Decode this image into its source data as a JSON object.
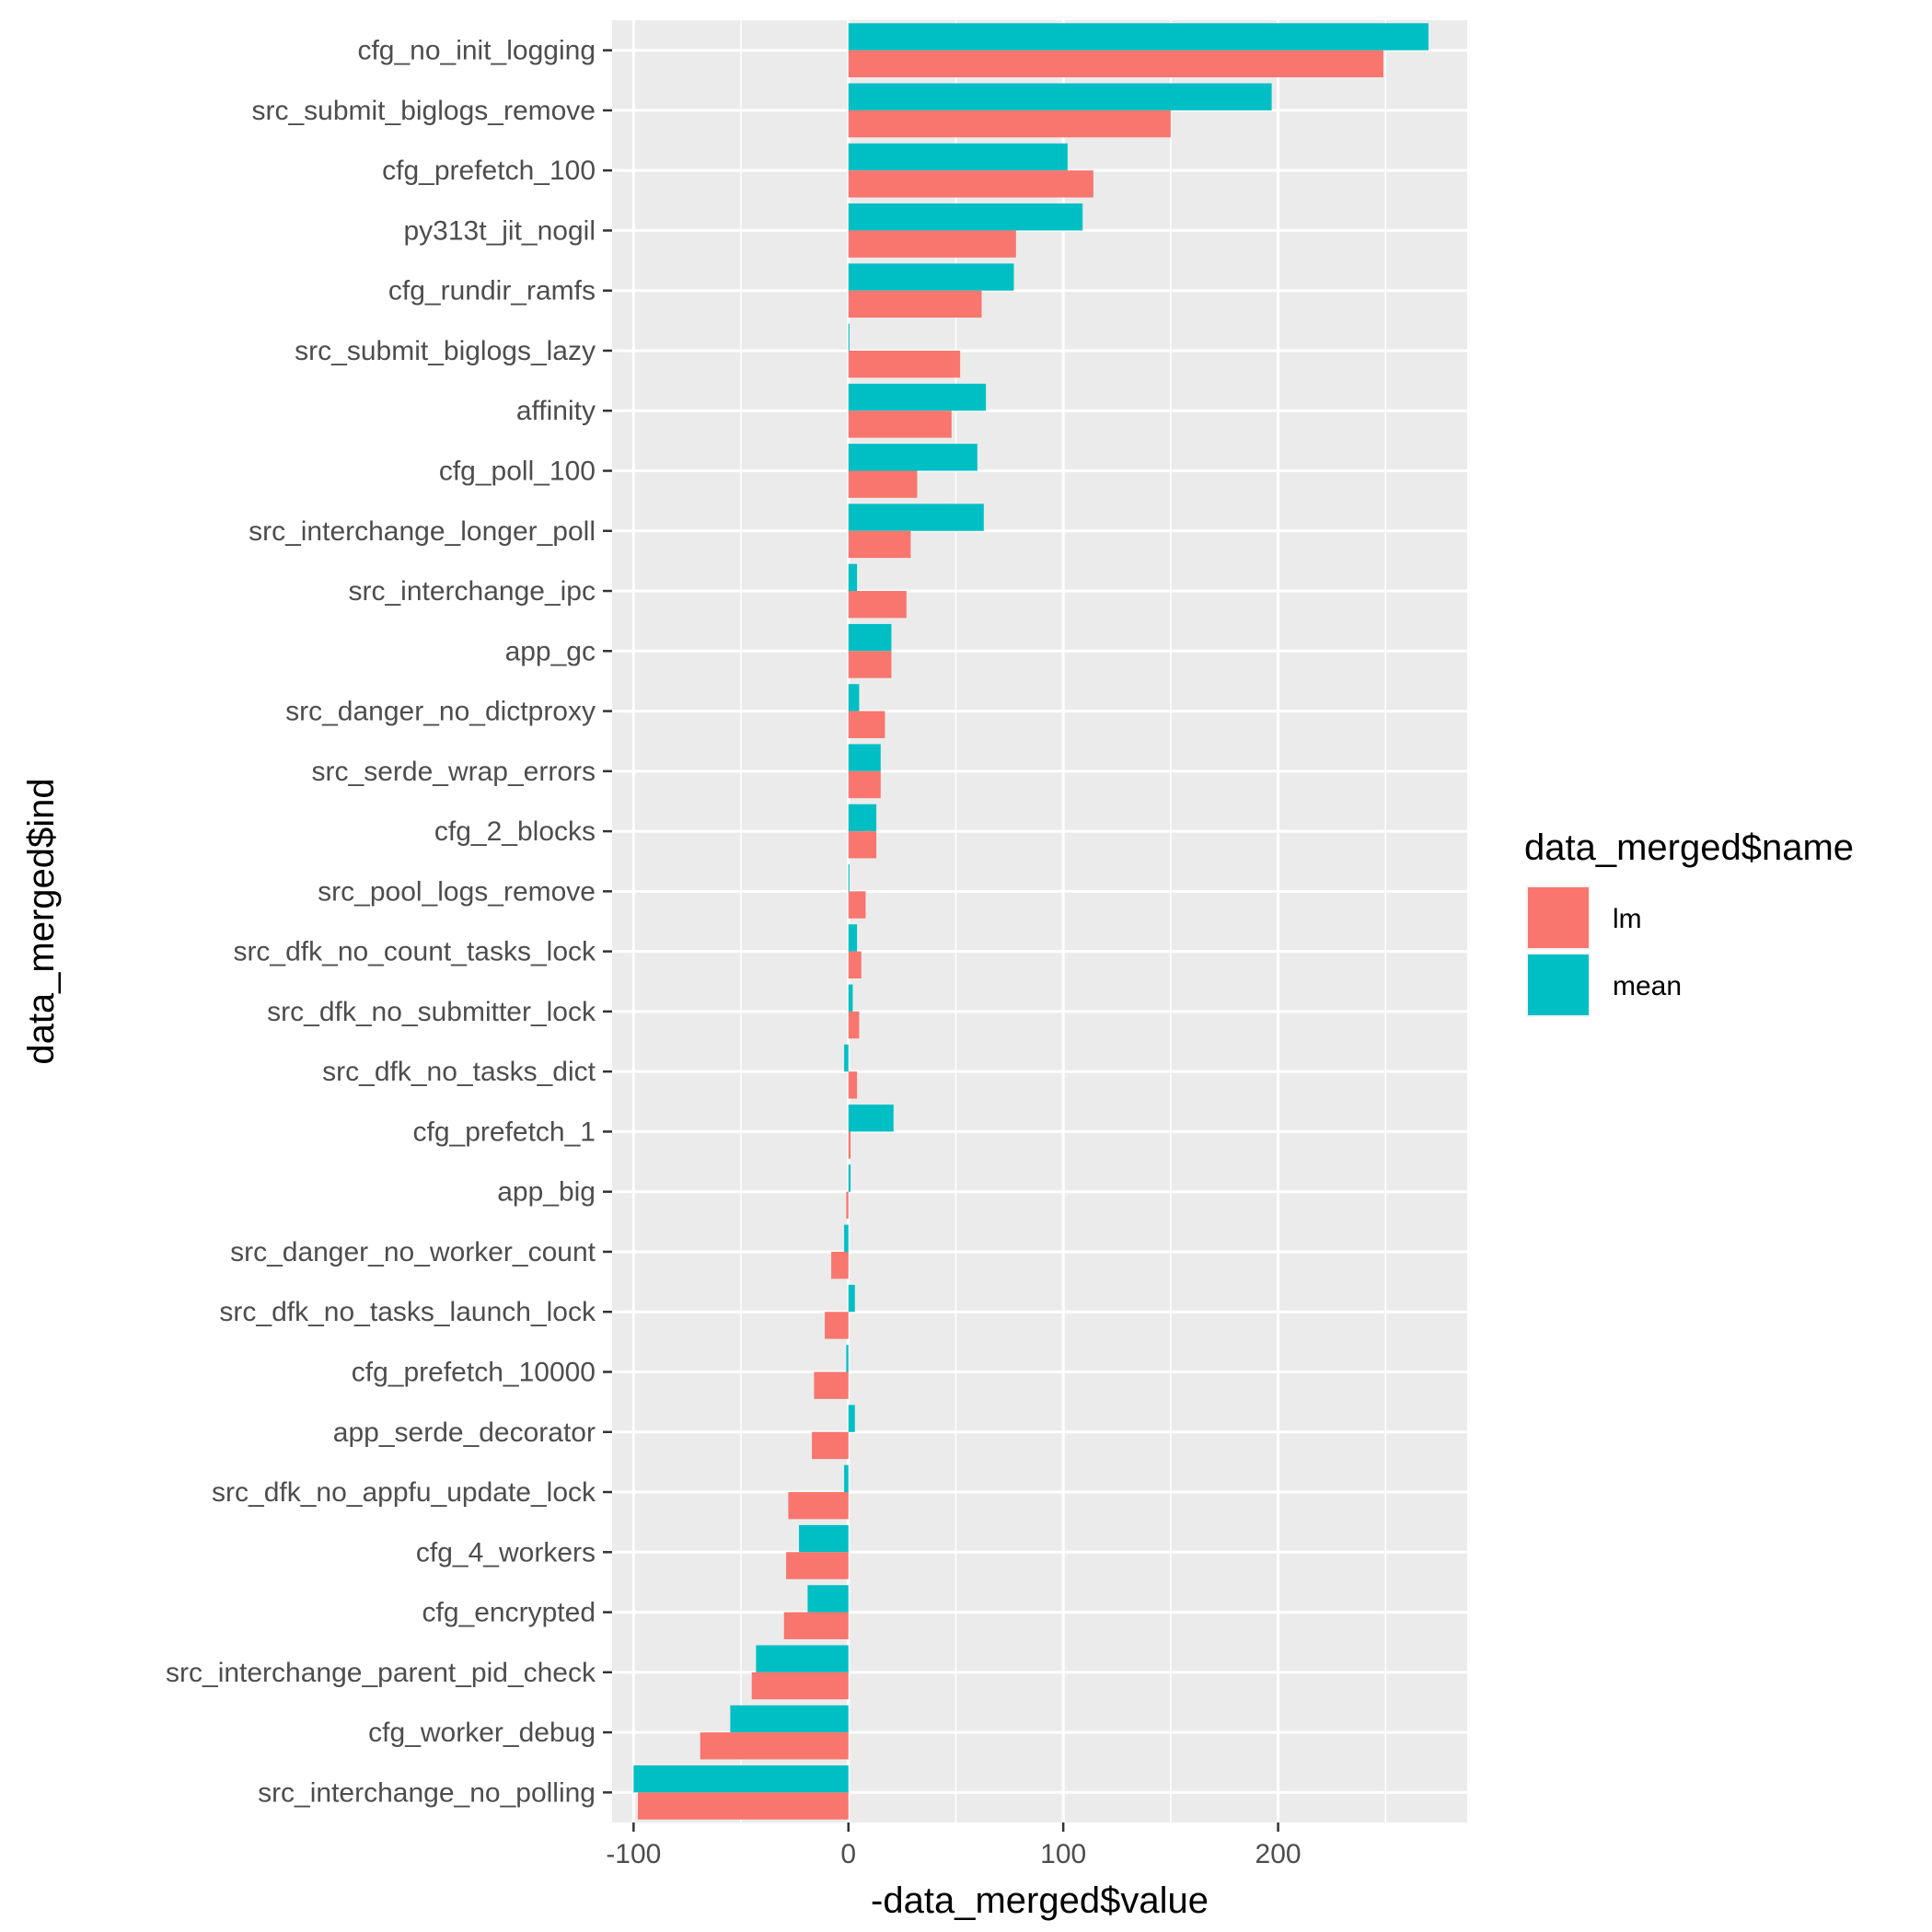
{
  "chart_data": {
    "type": "bar",
    "orientation": "horizontal",
    "xlabel": "-data_merged$value",
    "ylabel": "data_merged$ind",
    "xlim": [
      -110,
      288
    ],
    "x_ticks": [
      -100,
      0,
      100,
      200
    ],
    "x_tick_labels": [
      "-100",
      "0",
      "100",
      "200"
    ],
    "grid": true,
    "legend_position": "right",
    "legend": {
      "title": "data_merged$name",
      "entries": [
        {
          "label": "lm",
          "color": "#F8766D"
        },
        {
          "label": "mean",
          "color": "#00BFC4"
        }
      ]
    },
    "categories": [
      "cfg_no_init_logging",
      "src_submit_biglogs_remove",
      "cfg_prefetch_100",
      "py313t_jit_nogil",
      "cfg_rundir_ramfs",
      "src_submit_biglogs_lazy",
      "affinity",
      "cfg_poll_100",
      "src_interchange_longer_poll",
      "src_interchange_ipc",
      "app_gc",
      "src_danger_no_dictproxy",
      "src_serde_wrap_errors",
      "cfg_2_blocks",
      "src_pool_logs_remove",
      "src_dfk_no_count_tasks_lock",
      "src_dfk_no_submitter_lock",
      "src_dfk_no_tasks_dict",
      "cfg_prefetch_1",
      "app_big",
      "src_danger_no_worker_count",
      "src_dfk_no_tasks_launch_lock",
      "cfg_prefetch_10000",
      "app_serde_decorator",
      "src_dfk_no_appfu_update_lock",
      "cfg_4_workers",
      "cfg_encrypted",
      "src_interchange_parent_pid_check",
      "cfg_worker_debug",
      "src_interchange_no_polling"
    ],
    "series": [
      {
        "name": "lm",
        "color": "#F8766D",
        "values": [
          249,
          150,
          114,
          78,
          62,
          52,
          48,
          32,
          29,
          27,
          20,
          17,
          15,
          13,
          8,
          6,
          5,
          4,
          1,
          -1,
          -8,
          -11,
          -16,
          -17,
          -28,
          -29,
          -30,
          -45,
          -69,
          -98
        ]
      },
      {
        "name": "mean",
        "color": "#00BFC4",
        "values": [
          270,
          197,
          102,
          109,
          77,
          0.5,
          64,
          60,
          63,
          4,
          20,
          5,
          15,
          13,
          0.5,
          4,
          2,
          -2,
          21,
          1,
          -2,
          3,
          -1,
          3,
          -2,
          -23,
          -19,
          -43,
          -55,
          -100
        ]
      }
    ]
  }
}
